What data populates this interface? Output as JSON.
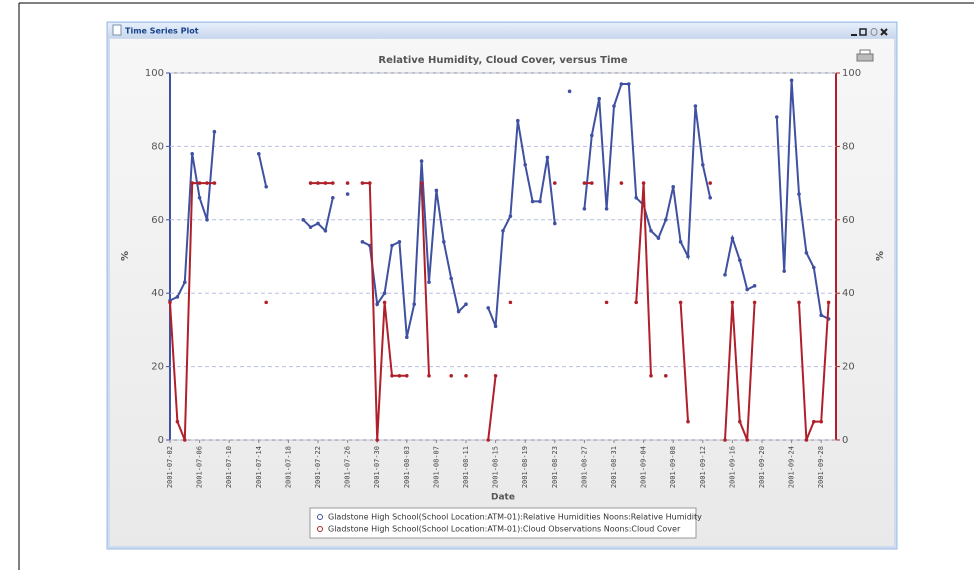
{
  "window": {
    "title": "Time Series Plot"
  },
  "chart_data": {
    "type": "line",
    "title": "Relative Humidity, Cloud Cover, versus Time",
    "xlabel": "Date",
    "ylabel": "%",
    "y2label": "%",
    "x": [
      "2001-07-02",
      "2001-07-03",
      "2001-07-04",
      "2001-07-05",
      "2001-07-06",
      "2001-07-07",
      "2001-07-08",
      "2001-07-09",
      "2001-07-10",
      "2001-07-11",
      "2001-07-12",
      "2001-07-13",
      "2001-07-14",
      "2001-07-15",
      "2001-07-16",
      "2001-07-17",
      "2001-07-18",
      "2001-07-19",
      "2001-07-20",
      "2001-07-21",
      "2001-07-22",
      "2001-07-23",
      "2001-07-24",
      "2001-07-25",
      "2001-07-26",
      "2001-07-27",
      "2001-07-28",
      "2001-07-29",
      "2001-07-30",
      "2001-07-31",
      "2001-08-01",
      "2001-08-02",
      "2001-08-03",
      "2001-08-04",
      "2001-08-05",
      "2001-08-06",
      "2001-08-07",
      "2001-08-08",
      "2001-08-09",
      "2001-08-10",
      "2001-08-11",
      "2001-08-12",
      "2001-08-13",
      "2001-08-14",
      "2001-08-15",
      "2001-08-16",
      "2001-08-17",
      "2001-08-18",
      "2001-08-19",
      "2001-08-20",
      "2001-08-21",
      "2001-08-22",
      "2001-08-23",
      "2001-08-24",
      "2001-08-25",
      "2001-08-26",
      "2001-08-27",
      "2001-08-28",
      "2001-08-29",
      "2001-08-30",
      "2001-08-31",
      "2001-09-01",
      "2001-09-02",
      "2001-09-03",
      "2001-09-04",
      "2001-09-05",
      "2001-09-06",
      "2001-09-07",
      "2001-09-08",
      "2001-09-09",
      "2001-09-10",
      "2001-09-11",
      "2001-09-12",
      "2001-09-13",
      "2001-09-14",
      "2001-09-15",
      "2001-09-16",
      "2001-09-17",
      "2001-09-18",
      "2001-09-19",
      "2001-09-20",
      "2001-09-21",
      "2001-09-22",
      "2001-09-23",
      "2001-09-24",
      "2001-09-25",
      "2001-09-26",
      "2001-09-27",
      "2001-09-28",
      "2001-09-29"
    ],
    "series": [
      {
        "name": "Gladstone High School(School Location:ATM-01):Relative Humidities Noons:Relative Humidity",
        "color": "#3f51a0",
        "values": [
          38,
          39,
          43,
          78,
          66,
          60,
          84,
          null,
          null,
          null,
          null,
          null,
          78,
          69,
          null,
          null,
          null,
          null,
          60,
          58,
          59,
          57,
          66,
          null,
          67,
          null,
          54,
          53,
          37,
          40,
          53,
          54,
          28,
          37,
          76,
          43,
          68,
          54,
          44,
          35,
          37,
          null,
          null,
          36,
          31,
          57,
          61,
          87,
          75,
          65,
          65,
          77,
          59,
          null,
          95,
          null,
          63,
          83,
          93,
          63,
          91,
          97,
          97,
          66,
          64,
          57,
          55,
          60,
          69,
          54,
          50,
          91,
          75,
          66,
          null,
          45,
          55,
          49,
          41,
          42,
          null,
          null,
          88,
          46,
          98,
          67,
          51,
          47,
          34,
          33
        ]
      },
      {
        "name": "Gladstone High School(School Location:ATM-01):Cloud Observations Noons:Cloud Cover",
        "color": "#b0202a",
        "axis": "y2",
        "values": [
          37.5,
          5,
          0,
          70,
          70,
          70,
          70,
          null,
          null,
          null,
          null,
          null,
          null,
          37.5,
          null,
          null,
          null,
          null,
          null,
          70,
          70,
          70,
          70,
          null,
          70,
          null,
          70,
          70,
          0,
          37.5,
          17.5,
          17.5,
          17.5,
          null,
          70,
          17.5,
          null,
          null,
          17.5,
          null,
          17.5,
          null,
          null,
          0,
          17.5,
          null,
          37.5,
          null,
          null,
          null,
          null,
          null,
          70,
          null,
          null,
          null,
          70,
          70,
          null,
          37.5,
          null,
          70,
          null,
          37.5,
          70,
          17.5,
          null,
          17.5,
          null,
          37.5,
          5,
          null,
          null,
          70,
          null,
          0,
          37.5,
          5,
          0,
          37.5,
          null,
          null,
          null,
          null,
          null,
          37.5,
          0,
          5,
          5,
          37.5
        ]
      }
    ],
    "xlim": [
      "2001-07-02",
      "2001-09-30"
    ],
    "xticks": [
      "2001-07-02",
      "2001-07-06",
      "2001-07-10",
      "2001-07-14",
      "2001-07-18",
      "2001-07-22",
      "2001-07-26",
      "2001-07-30",
      "2001-08-03",
      "2001-08-07",
      "2001-08-11",
      "2001-08-15",
      "2001-08-19",
      "2001-08-23",
      "2001-08-27",
      "2001-08-31",
      "2001-09-04",
      "2001-09-08",
      "2001-09-12",
      "2001-09-16",
      "2001-09-20",
      "2001-09-24",
      "2001-09-28"
    ],
    "ylim": [
      0,
      100
    ],
    "yticks": [
      0,
      20,
      40,
      60,
      80,
      100
    ],
    "y2lim": [
      0,
      100
    ],
    "y2ticks": [
      0,
      20,
      40,
      60,
      80,
      100
    ],
    "grid": true,
    "legend": "bottom"
  }
}
